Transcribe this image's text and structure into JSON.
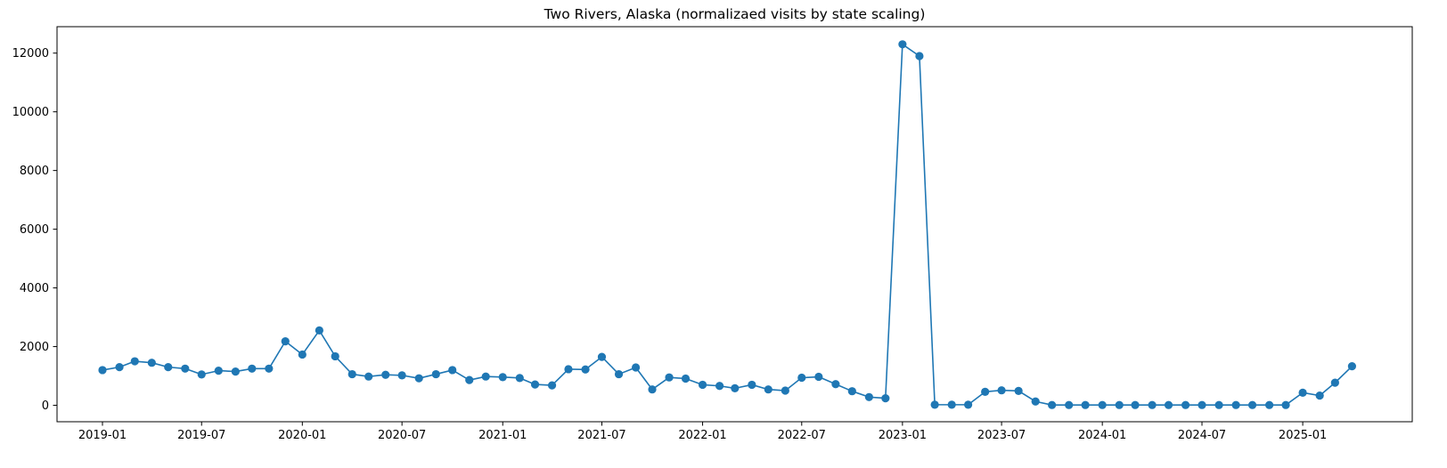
{
  "chart_data": {
    "type": "line",
    "title": "Two Rivers, Alaska (normalizaed visits by state scaling)",
    "xlabel": "",
    "ylabel": "",
    "x_tick_labels": [
      "2019-01",
      "2019-07",
      "2020-01",
      "2020-07",
      "2021-01",
      "2021-07",
      "2022-01",
      "2022-07",
      "2023-01",
      "2023-07",
      "2024-01",
      "2024-07",
      "2025-01"
    ],
    "y_tick_labels": [
      "0",
      "2000",
      "4000",
      "6000",
      "8000",
      "10000",
      "12000"
    ],
    "ylim": [
      -560,
      12900
    ],
    "xlim": [
      "2018-10-10",
      "2025-07-20"
    ],
    "grid": false,
    "legend": "none",
    "series": [
      {
        "color": "#1f77b4",
        "marker": "circle",
        "x": [
          "2019-01",
          "2019-02",
          "2019-03",
          "2019-04",
          "2019-05",
          "2019-06",
          "2019-07",
          "2019-08",
          "2019-09",
          "2019-10",
          "2019-11",
          "2019-12",
          "2020-01",
          "2020-02",
          "2020-03",
          "2020-04",
          "2020-05",
          "2020-06",
          "2020-07",
          "2020-08",
          "2020-09",
          "2020-10",
          "2020-11",
          "2020-12",
          "2021-01",
          "2021-02",
          "2021-03",
          "2021-04",
          "2021-05",
          "2021-06",
          "2021-07",
          "2021-08",
          "2021-09",
          "2021-10",
          "2021-11",
          "2021-12",
          "2022-01",
          "2022-02",
          "2022-03",
          "2022-04",
          "2022-05",
          "2022-06",
          "2022-07",
          "2022-08",
          "2022-09",
          "2022-10",
          "2022-11",
          "2022-12",
          "2023-01",
          "2023-02",
          "2023-03",
          "2023-04",
          "2023-05",
          "2023-06",
          "2023-07",
          "2023-08",
          "2023-09",
          "2023-10",
          "2023-11",
          "2023-12",
          "2024-01",
          "2024-02",
          "2024-03",
          "2024-04",
          "2024-05",
          "2024-06",
          "2024-07",
          "2024-08",
          "2024-09",
          "2024-10",
          "2024-11",
          "2024-12",
          "2025-01",
          "2025-02",
          "2025-03",
          "2025-04"
        ],
        "values": [
          1200,
          1300,
          1500,
          1450,
          1300,
          1250,
          1050,
          1180,
          1150,
          1250,
          1250,
          2180,
          1730,
          2550,
          1670,
          1060,
          980,
          1040,
          1020,
          920,
          1060,
          1200,
          860,
          980,
          960,
          930,
          710,
          680,
          1230,
          1220,
          1650,
          1060,
          1290,
          540,
          950,
          910,
          700,
          660,
          580,
          700,
          540,
          500,
          940,
          970,
          720,
          480,
          280,
          240,
          12300,
          11900,
          20,
          20,
          20,
          460,
          510,
          490,
          130,
          10,
          10,
          10,
          10,
          10,
          10,
          10,
          10,
          10,
          10,
          10,
          10,
          10,
          10,
          10,
          430,
          330,
          770,
          1330
        ]
      }
    ]
  }
}
